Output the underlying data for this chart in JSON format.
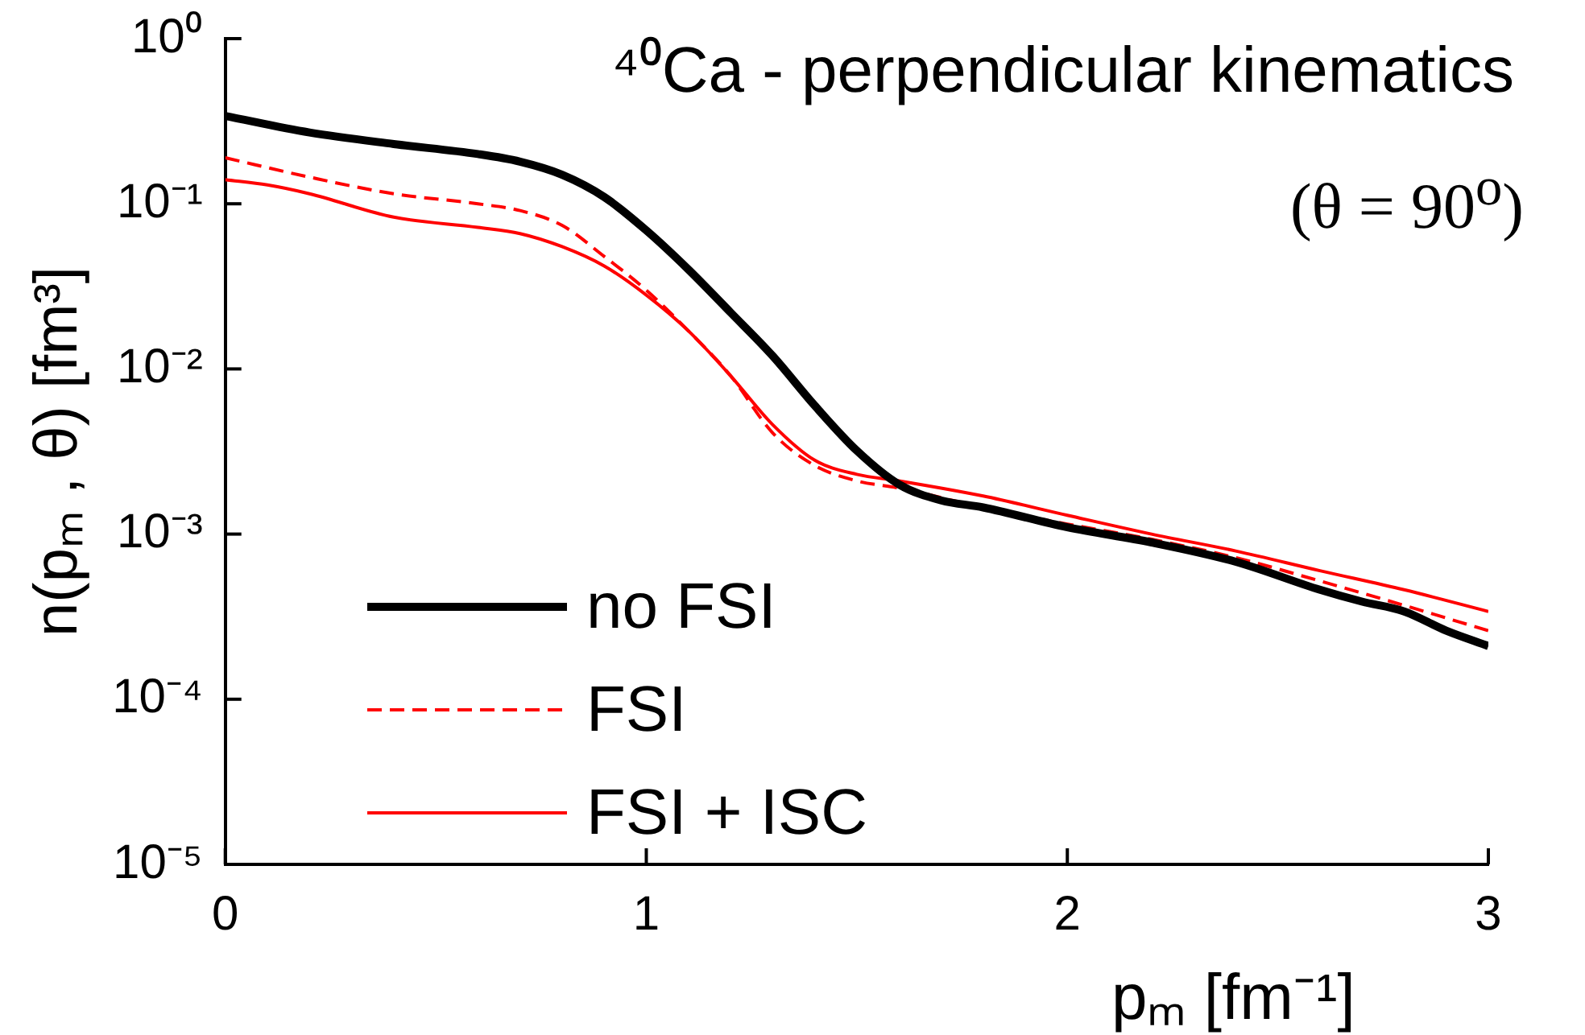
{
  "chart_data": {
    "type": "line",
    "title": "⁴⁰Ca - perpendicular kinematics",
    "xlabel": "pₘ [fm⁻¹]",
    "ylabel": "n(pₘ , θ) [fm³]",
    "annotations": [
      "(θ = 90$^{o}$)"
    ],
    "log": "y",
    "grid": false,
    "legend": "bottom left",
    "marker": "none",
    "xlim": [
      0,
      3
    ],
    "xticks": [
      0,
      1,
      2,
      3
    ],
    "ylim": [
      1e-05,
      1
    ],
    "yticks": [
      {
        "value": 1e-05,
        "label": "10⁻⁵"
      },
      {
        "value": 0.0001,
        "label": "10⁻⁴"
      },
      {
        "value": 0.001,
        "label": "10⁻³"
      },
      {
        "value": 0.01,
        "label": "10⁻²"
      },
      {
        "value": 0.1,
        "label": "10⁻¹"
      },
      {
        "value": 1,
        "label": "10⁰"
      }
    ],
    "series": [
      {
        "name": "no FSI",
        "color": "#000000",
        "line_style": "solid",
        "x": [
          0,
          0.2,
          0.4,
          0.6,
          0.7,
          0.8,
          0.9,
          1.0,
          1.1,
          1.2,
          1.3,
          1.4,
          1.5,
          1.6,
          1.7,
          1.8,
          2.0,
          2.2,
          2.4,
          2.6,
          2.7,
          2.8,
          2.9,
          3.0
        ],
        "values": [
          0.34,
          0.27,
          0.23,
          0.2,
          0.18,
          0.15,
          0.11,
          0.069,
          0.04,
          0.022,
          0.012,
          0.006,
          0.0032,
          0.002,
          0.0016,
          0.00145,
          0.0011,
          0.00089,
          0.00068,
          0.00046,
          0.00039,
          0.00034,
          0.00026,
          0.00021
        ]
      },
      {
        "name": "FSI",
        "color": "#ff0000",
        "line_style": "dashed",
        "x": [
          0,
          0.2,
          0.4,
          0.6,
          0.7,
          0.8,
          0.9,
          1.0,
          1.1,
          1.2,
          1.3,
          1.4,
          1.5,
          1.6,
          1.8,
          2.0,
          2.2,
          2.4,
          2.6,
          2.8,
          3.0
        ],
        "values": [
          0.19,
          0.145,
          0.115,
          0.1,
          0.091,
          0.074,
          0.048,
          0.03,
          0.017,
          0.0091,
          0.0041,
          0.0026,
          0.0021,
          0.0019,
          0.00145,
          0.00115,
          0.00093,
          0.00072,
          0.00052,
          0.00037,
          0.00026
        ]
      },
      {
        "name": "FSI + ISC",
        "color": "#ff0000",
        "line_style": "solid",
        "x": [
          0,
          0.1,
          0.2,
          0.4,
          0.6,
          0.7,
          0.8,
          0.9,
          1.0,
          1.1,
          1.2,
          1.3,
          1.4,
          1.5,
          1.6,
          1.8,
          2.0,
          2.2,
          2.4,
          2.6,
          2.8,
          3.0
        ],
        "values": [
          0.14,
          0.13,
          0.115,
          0.083,
          0.072,
          0.066,
          0.055,
          0.042,
          0.028,
          0.017,
          0.0091,
          0.0046,
          0.0028,
          0.0023,
          0.0021,
          0.0017,
          0.0013,
          0.001,
          0.00079,
          0.0006,
          0.00046,
          0.00034
        ]
      }
    ]
  }
}
